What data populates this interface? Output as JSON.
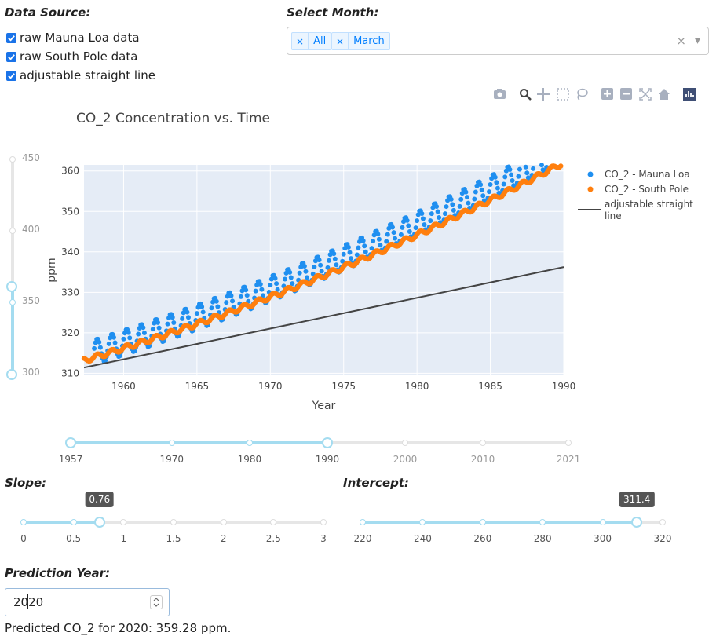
{
  "data_source": {
    "title": "Data Source:",
    "options": [
      {
        "label": "raw Mauna Loa data",
        "checked": true
      },
      {
        "label": "raw South Pole data",
        "checked": true
      },
      {
        "label": "adjustable straight line",
        "checked": true
      }
    ]
  },
  "select_month": {
    "title": "Select Month:",
    "tags": [
      "All",
      "March"
    ],
    "clear_glyph": "×",
    "arrow_glyph": "▾"
  },
  "modebar": {
    "icons": [
      "camera-icon",
      "zoom-icon",
      "pan-icon",
      "box-select-icon",
      "lasso-icon",
      "zoom-in-icon",
      "zoom-out-icon",
      "autoscale-icon",
      "reset-axes-icon",
      "plotly-logo-icon"
    ]
  },
  "chart_data": {
    "type": "scatter",
    "title": "CO_2 Concentration vs. Time",
    "xlabel": "Year",
    "ylabel": "ppm",
    "xlim": [
      1957.3,
      1990
    ],
    "ylim": [
      309.5,
      361.5
    ],
    "xticks": [
      1960,
      1965,
      1970,
      1975,
      1980,
      1985,
      1990
    ],
    "yticks": [
      310,
      320,
      330,
      340,
      350,
      360
    ],
    "grid": true,
    "legend_position": "right",
    "series": [
      {
        "name": "CO_2 - Mauna Loa",
        "mode": "markers",
        "color": "#1f8ff0",
        "trend": {
          "start_year": 1958,
          "start_value": 315.2,
          "rate": 1.15,
          "rate_growth": 0.013,
          "seasonal_amplitude": 3.1
        }
      },
      {
        "name": "CO_2 - South Pole",
        "mode": "markers",
        "color": "#ff7f0e",
        "trend": {
          "start_year": 1957.3,
          "start_value": 313.2,
          "rate": 1.07,
          "rate_growth": 0.013,
          "seasonal_amplitude": 0.6
        }
      },
      {
        "name": "adjustable straight line",
        "mode": "line",
        "color": "#444444",
        "line": {
          "slope": 0.76,
          "intercept": 311.4,
          "x_start": 1957.3,
          "x_end": 1990
        }
      }
    ]
  },
  "y_range_slider": {
    "ticks": [
      "450",
      "400",
      "350",
      "300"
    ],
    "tick_values": [
      450,
      400,
      350,
      300
    ],
    "min": 300,
    "max": 450,
    "handles": [
      300,
      361.5
    ]
  },
  "x_range_slider": {
    "ticks": [
      "1957",
      "1970",
      "1980",
      "1990",
      "2000",
      "2010",
      "2021"
    ],
    "tick_values": [
      1957,
      1970,
      1980,
      1990,
      2000,
      2010,
      2021
    ],
    "handles": [
      1957,
      1990
    ]
  },
  "slope": {
    "title": "Slope:",
    "value": "0.76",
    "value_num": 0.76,
    "min": 0,
    "max": 3,
    "ticks": [
      "0",
      "0.5",
      "1",
      "1.5",
      "2",
      "2.5",
      "3"
    ],
    "tick_values": [
      0,
      0.5,
      1,
      1.5,
      2,
      2.5,
      3
    ]
  },
  "intercept": {
    "title": "Intercept:",
    "value": "311.4",
    "value_num": 311.4,
    "min": 220,
    "max": 320,
    "ticks": [
      "220",
      "240",
      "260",
      "280",
      "300",
      "320"
    ],
    "tick_values": [
      220,
      240,
      260,
      280,
      300,
      320
    ]
  },
  "prediction": {
    "title": "Prediction Year:",
    "input_value": "2020",
    "result": "Predicted CO_2 for 2020: 359.28 ppm."
  }
}
